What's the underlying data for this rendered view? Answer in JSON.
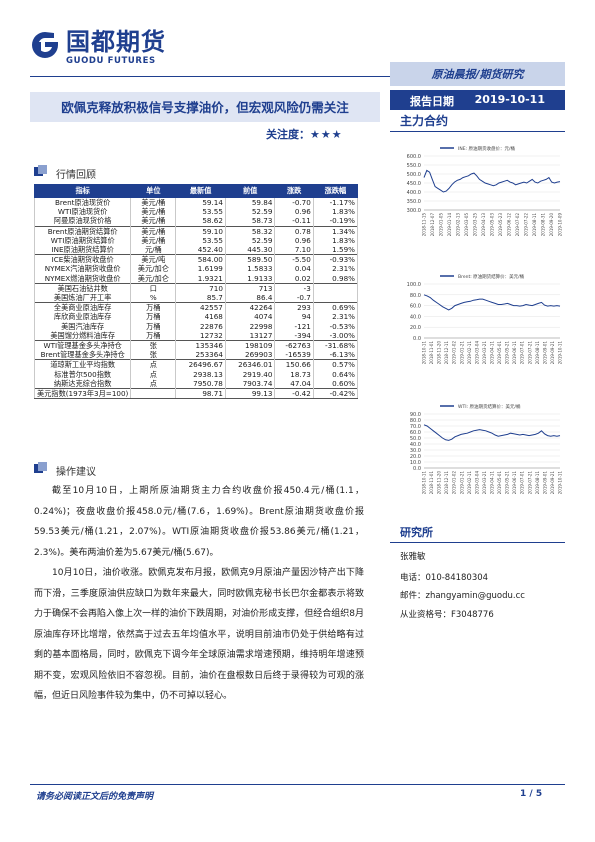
{
  "header": {
    "logo_cn": "国都期货",
    "logo_en": "GUODU FUTURES",
    "banner": "原油晨报/期货研究",
    "title": "欧佩克释放积极信号支撑油价，但宏观风险仍需关注",
    "attention_label": "关注度：",
    "attention_stars": "★★★",
    "date_label": "报告日期",
    "date_value": "2019-10-11",
    "sub_head": "主力合约"
  },
  "sections": {
    "market_review": "行情回顾",
    "suggestion": "操作建议"
  },
  "table": {
    "headers": [
      "指标",
      "单位",
      "最新值",
      "前值",
      "涨跌",
      "涨跌幅"
    ],
    "rows": [
      [
        "Brent原油现货价",
        "美元/桶",
        "59.14",
        "59.84",
        "-0.70",
        "-1.17%"
      ],
      [
        "WTI原油现货价",
        "美元/桶",
        "53.55",
        "52.59",
        "0.96",
        "1.83%"
      ],
      [
        "阿曼原油现货价格",
        "美元/桶",
        "58.62",
        "58.73",
        "-0.11",
        "-0.19%"
      ],
      [
        "Brent原油期货结算价",
        "美元/桶",
        "59.10",
        "58.32",
        "0.78",
        "1.34%"
      ],
      [
        "WTI原油期货结算价",
        "美元/桶",
        "53.55",
        "52.59",
        "0.96",
        "1.83%"
      ],
      [
        "INE原油期货结算价",
        "元/桶",
        "452.40",
        "445.30",
        "7.10",
        "1.59%"
      ],
      [
        "ICE柴油期货收盘价",
        "美元/吨",
        "584.00",
        "589.50",
        "-5.50",
        "-0.93%"
      ],
      [
        "NYMEX汽油期货收盘价",
        "美元/加仑",
        "1.6199",
        "1.5833",
        "0.04",
        "2.31%"
      ],
      [
        "NYMEX燃油期货收盘价",
        "美元/加仑",
        "1.9321",
        "1.9133",
        "0.02",
        "0.98%"
      ],
      [
        "美国石油钻井数",
        "口",
        "710",
        "713",
        "-3",
        ""
      ],
      [
        "美国炼油厂开工率",
        "%",
        "85.7",
        "86.4",
        "-0.7",
        ""
      ],
      [
        "全美商业原油库存",
        "万桶",
        "42557",
        "42264",
        "293",
        "0.69%"
      ],
      [
        "库欣商业原油库存",
        "万桶",
        "4168",
        "4074",
        "94",
        "2.31%"
      ],
      [
        "美国汽油库存",
        "万桶",
        "22876",
        "22998",
        "-121",
        "-0.53%"
      ],
      [
        "美国馏分燃料油库存",
        "万桶",
        "12732",
        "13127",
        "-394",
        "-3.00%"
      ],
      [
        "WTI管理基金多头净持仓",
        "张",
        "135346",
        "198109",
        "-62763",
        "-31.68%"
      ],
      [
        "Brent管理基金多头净持仓",
        "张",
        "253364",
        "269903",
        "-16539",
        "-6.13%"
      ],
      [
        "道琼斯工业平均指数",
        "点",
        "26496.67",
        "26346.01",
        "150.66",
        "0.57%"
      ],
      [
        "标准普尔500指数",
        "点",
        "2938.13",
        "2919.40",
        "18.73",
        "0.64%"
      ],
      [
        "纳斯达克综合指数",
        "点",
        "7950.78",
        "7903.74",
        "47.04",
        "0.60%"
      ],
      [
        "美元指数(1973年3月=100)",
        "",
        "98.71",
        "99.13",
        "-0.42",
        "-0.42%"
      ]
    ]
  },
  "paragraphs": [
    "截至10月10日，上期所原油期货主力合约收盘价报450.4元/桶(1.1，0.24%)；夜盘收盘价报458.0元/桶(7.6，1.69%)。Brent原油期货收盘价报59.53美元/桶(1.21，2.07%)。WTI原油期货收盘价报53.86美元/桶(1.21，2.3%)。美布两油价差为5.67美元/桶(5.67)。",
    "10月10日，油价收涨。欧佩克发布月报，欧佩克9月原油产量因沙特产出下降而下滑，三季度原油供应缺口为数年来最大，同时欧佩克秘书长巴尔金都表示将致力于确保不会再陷入像上次一样的油价下跌周期，对油价形成支撑，但经合组织8月原油库存环比增增，依然高于过去五年均值水平，说明目前油市仍处于供给略有过剩的基本面格局，同时，欧佩克下调今年全球原油需求增速预期，维持明年增速预期不变，宏观风险依旧不容忽视。目前，油价在盘根数日后终于录得较为可观的涨幅，但近日风险事件较为集中，仍不可掉以轻心。"
  ],
  "charts": [
    {
      "legend": "INE: 原油期货收盘价：元/桶",
      "ylim": [
        300,
        600
      ],
      "yticks": [
        "600.0",
        "550.0",
        "500.0",
        "450.0",
        "400.0",
        "350.0",
        "300.0"
      ],
      "xticks": [
        "2018-11-15",
        "2018-12-07",
        "2019-01-05",
        "2019-01-14",
        "2019-02-13",
        "2019-03-05",
        "2019-03-25",
        "2019-04-13",
        "2019-05-03",
        "2019-05-23",
        "2019-06-12",
        "2019-07-02",
        "2019-07-22",
        "2019-08-11",
        "2019-08-31",
        "2019-09-20",
        "2019-10-09"
      ],
      "values": [
        480,
        520,
        510,
        470,
        430,
        420,
        410,
        400,
        405,
        420,
        440,
        455,
        465,
        470,
        480,
        485,
        490,
        500,
        505,
        490,
        470,
        460,
        450,
        445,
        440,
        435,
        440,
        450,
        455,
        460,
        465,
        455,
        450,
        440,
        445,
        450,
        455,
        450,
        460,
        470,
        455,
        450,
        460,
        465,
        470,
        480,
        455,
        450,
        455,
        458
      ]
    },
    {
      "legend": "Brent: 原油期货结算价：美元/桶",
      "ylim": [
        0,
        100
      ],
      "yticks": [
        "100.0",
        "80.0",
        "60.0",
        "40.0",
        "20.0",
        "0.0"
      ],
      "xticks": [
        "2018-10-11",
        "2018-11-01",
        "2018-11-20",
        "2018-12-11",
        "2019-01-02",
        "2019-01-21",
        "2019-02-11",
        "2019-03-04",
        "2019-03-21",
        "2019-04-11",
        "2019-05-01",
        "2019-05-21",
        "2019-06-11",
        "2019-07-01",
        "2019-07-21",
        "2019-08-11",
        "2019-09-01",
        "2019-09-21",
        "2019-10-11"
      ],
      "values": [
        80,
        78,
        75,
        70,
        66,
        62,
        58,
        55,
        52,
        55,
        60,
        62,
        64,
        66,
        67,
        68,
        70,
        71,
        72,
        72,
        70,
        68,
        66,
        64,
        62,
        62,
        63,
        64,
        62,
        60,
        60,
        59,
        60,
        62,
        61,
        60,
        62,
        64,
        66,
        61,
        59,
        60,
        59,
        60,
        59
      ]
    },
    {
      "legend": "WTI: 原油期货结算价：美元/桶",
      "ylim": [
        0,
        90
      ],
      "yticks": [
        "90.0",
        "80.0",
        "70.0",
        "60.0",
        "50.0",
        "40.0",
        "30.0",
        "20.0",
        "10.0",
        "0.0"
      ],
      "xticks": [
        "2018-10-11",
        "2018-11-01",
        "2018-11-20",
        "2018-12-11",
        "2019-01-02",
        "2019-01-21",
        "2019-02-11",
        "2019-03-04",
        "2019-03-21",
        "2019-04-11",
        "2019-05-01",
        "2019-05-21",
        "2019-06-11",
        "2019-07-01",
        "2019-07-21",
        "2019-08-11",
        "2019-09-01",
        "2019-09-21",
        "2019-10-11"
      ],
      "values": [
        72,
        70,
        66,
        62,
        58,
        54,
        50,
        47,
        46,
        48,
        52,
        54,
        56,
        57,
        58,
        60,
        62,
        63,
        64,
        63,
        62,
        60,
        58,
        55,
        53,
        54,
        55,
        56,
        58,
        57,
        56,
        55,
        56,
        55,
        54,
        55,
        56,
        58,
        62,
        57,
        54,
        53,
        54,
        53,
        54
      ]
    }
  ],
  "research": {
    "title": "研究所",
    "name": "张雅敏",
    "phone": "电话：010-84180304",
    "email": "邮件：zhangyamin@guodu.cc",
    "cert": "从业资格号：F3048776"
  },
  "footer": {
    "disclaimer": "请务必阅读正文后的免责声明",
    "page": "1 / 5"
  },
  "colors": {
    "brand": "#1f3f8f",
    "banner_bg": "#c9d4ea",
    "line": "#1f3f8f"
  }
}
